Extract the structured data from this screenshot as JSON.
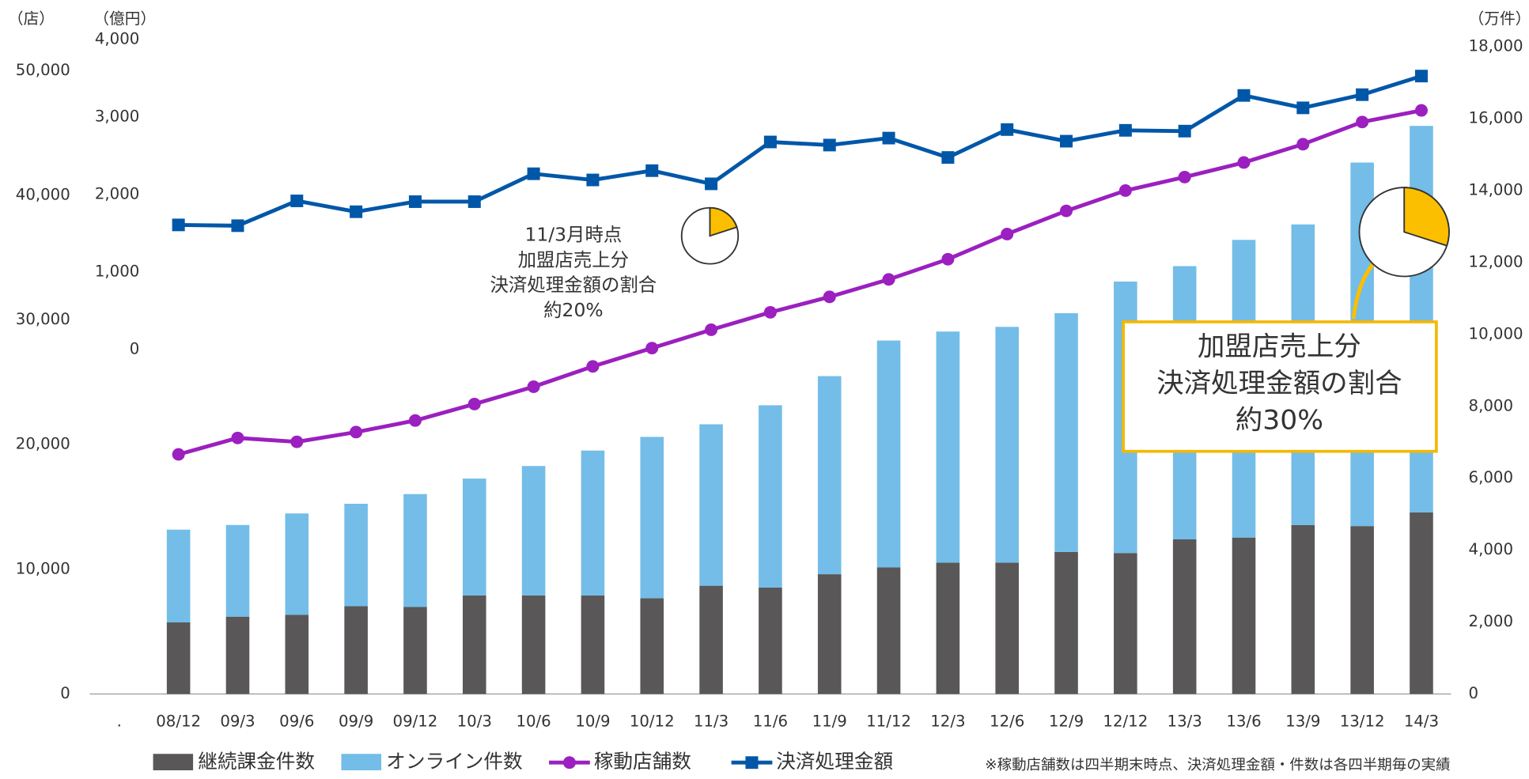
{
  "chart_data": {
    "type": "bar-line",
    "categories": [
      ".",
      "08/12",
      "09/3",
      "09/6",
      "09/9",
      "09/12",
      "10/3",
      "10/6",
      "10/9",
      "10/12",
      "11/3",
      "11/6",
      "11/9",
      "11/12",
      "12/3",
      "12/6",
      "12/9",
      "12/12",
      "13/3",
      "13/6",
      "13/9",
      "13/12",
      "14/3"
    ],
    "series": [
      {
        "name": "継続課金件数",
        "type": "bar",
        "axis": "y2",
        "color": "#595757",
        "values": [
          null,
          1990,
          2150,
          2200,
          2440,
          2420,
          2740,
          2740,
          2740,
          2660,
          3010,
          2960,
          3330,
          3520,
          3650,
          3650,
          3950,
          3920,
          4300,
          4350,
          4700,
          4670,
          5050
        ]
      },
      {
        "name": "オンライン件数",
        "type": "bar",
        "axis": "y2",
        "color": "#73bde8",
        "values": [
          null,
          2580,
          2550,
          2820,
          2850,
          3140,
          3250,
          3600,
          4030,
          4490,
          4490,
          5070,
          5510,
          6310,
          6430,
          6560,
          6640,
          7550,
          7600,
          8280,
          8360,
          10110,
          10750
        ]
      },
      {
        "name": "稼動店舗数",
        "type": "line",
        "marker": "circle",
        "color": "#9b20bf",
        "values": [
          null,
          19220,
          20540,
          20230,
          21010,
          21940,
          23260,
          24650,
          26280,
          27750,
          29220,
          30620,
          31860,
          33260,
          34880,
          36900,
          38760,
          40390,
          41470,
          42640,
          44110,
          45890,
          46820
        ]
      },
      {
        "name": "決済処理金額",
        "type": "line",
        "marker": "square",
        "axis": "y3",
        "color": "#0057a8",
        "values": [
          null,
          1610,
          1600,
          1920,
          1780,
          1910,
          1910,
          2270,
          2190,
          2310,
          2140,
          2680,
          2640,
          2730,
          2480,
          2840,
          2690,
          2830,
          2820,
          3280,
          3120,
          3290,
          3530
        ]
      }
    ],
    "ylabel": "（店）",
    "ylim": [
      0,
      52500
    ],
    "yticks": [
      0,
      {
        "value": 10000,
        "label": "10,000"
      },
      {
        "value": 20000,
        "label": "20,000"
      },
      {
        "value": 30000,
        "label": "30,000"
      },
      {
        "value": 40000,
        "label": "40,000"
      },
      {
        "value": 50000,
        "label": "50,000"
      }
    ],
    "y3label": "（億円）",
    "y3lim": [
      -4440,
      4000
    ],
    "y3ticks": [
      0,
      {
        "value": 1000,
        "label": "1,000"
      },
      {
        "value": 2000,
        "label": "2,000"
      },
      {
        "value": 3000,
        "label": "3,000"
      },
      {
        "value": 4000,
        "label": "4,000"
      }
    ],
    "y2label": "（万件）",
    "y2lim": [
      0,
      18200
    ],
    "y2ticks": [
      0,
      {
        "value": 2000,
        "label": "2,000"
      },
      {
        "value": 4000,
        "label": "4,000"
      },
      {
        "value": 6000,
        "label": "6,000"
      },
      {
        "value": 8000,
        "label": "8,000"
      },
      {
        "value": 10000,
        "label": "10,000"
      },
      {
        "value": 12000,
        "label": "12,000"
      },
      {
        "value": 14000,
        "label": "14,000"
      },
      {
        "value": 16000,
        "label": "16,000"
      },
      {
        "value": 18000,
        "label": "18,000"
      }
    ],
    "annotations": [
      {
        "lines": [
          "11/3月時点",
          "加盟店売上分",
          "決済処理金額の割合",
          "約20%"
        ],
        "pie_value": 20
      },
      {
        "lines": [
          "加盟店売上分",
          "決済処理金額の割合",
          "約30%"
        ],
        "pie_value": 30
      }
    ],
    "note": "※稼動店舗数は四半期末時点、決済処理金額・件数は各四半期毎の実績"
  }
}
